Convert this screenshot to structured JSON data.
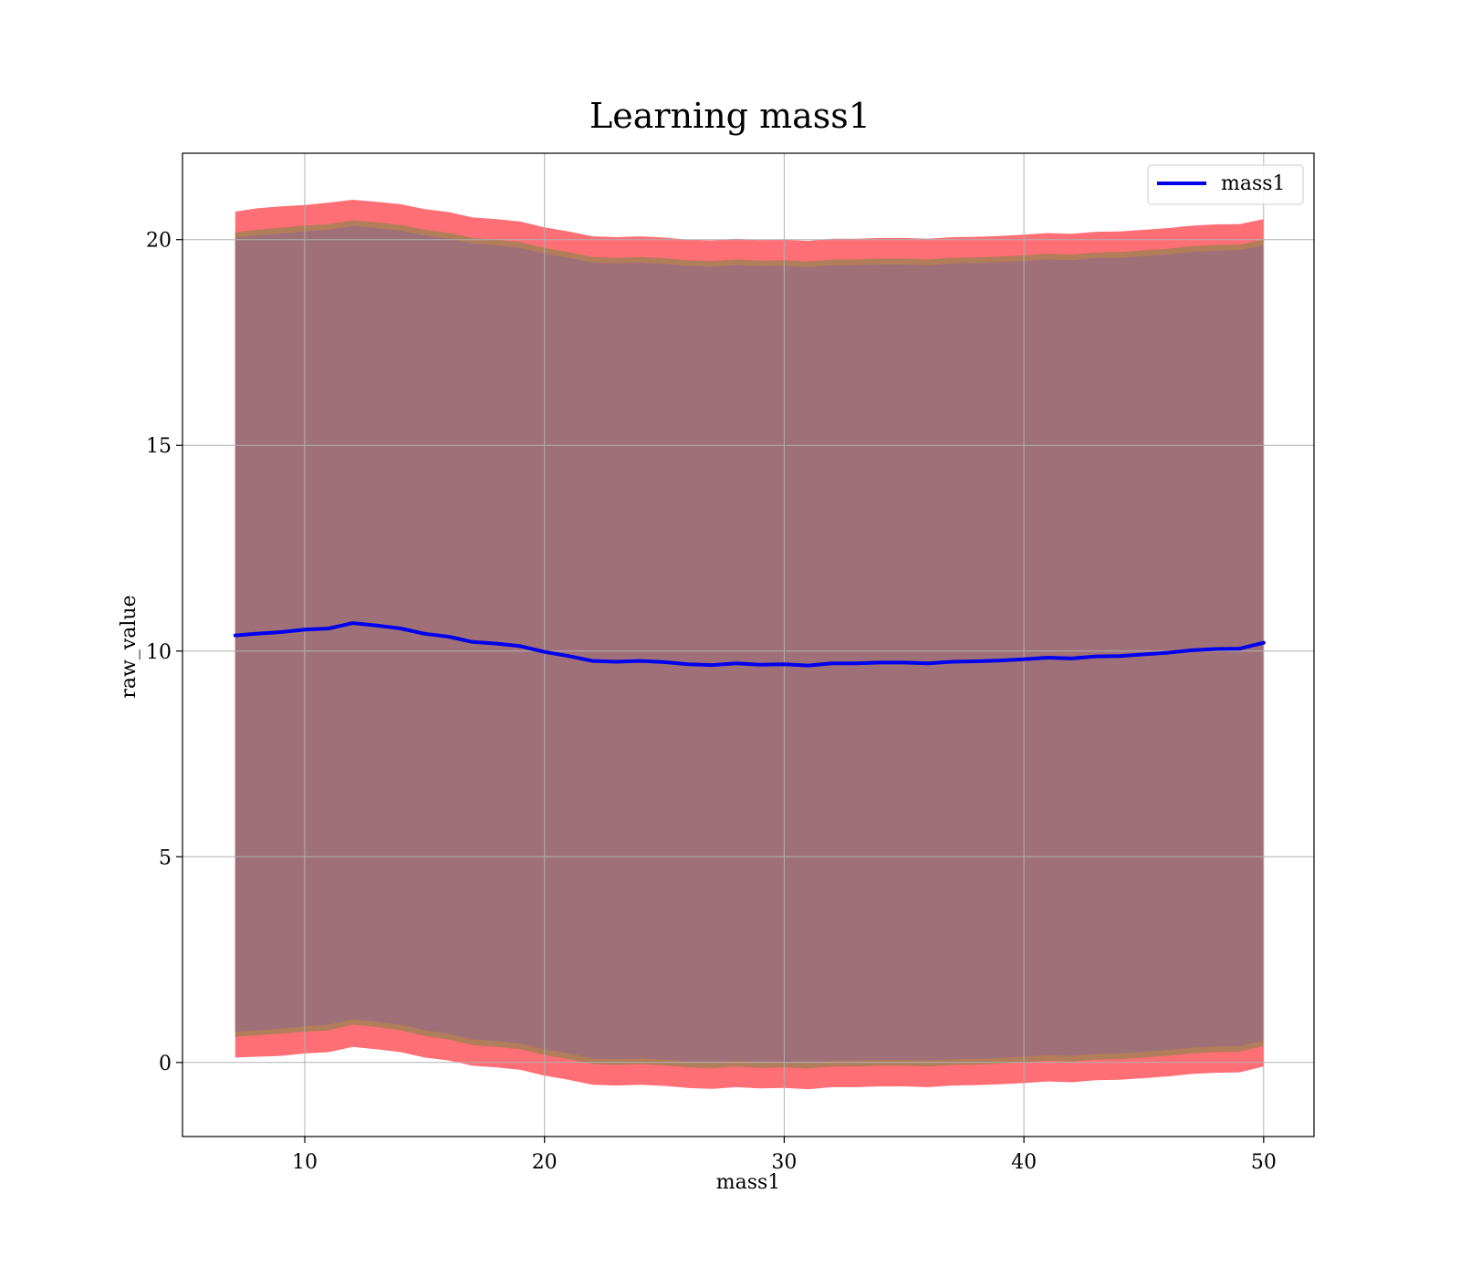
{
  "chart_data": {
    "type": "line",
    "title": "Learning mass1",
    "xlabel": "mass1",
    "ylabel": "raw_value",
    "xlim": [
      4.9,
      52.1
    ],
    "ylim": [
      -1.8,
      22.1
    ],
    "xticks": [
      10,
      20,
      30,
      40,
      50
    ],
    "xtick_labels": [
      "10",
      "20",
      "30",
      "40",
      "50"
    ],
    "yticks": [
      0,
      5,
      10,
      15,
      20
    ],
    "ytick_labels": [
      "0",
      "5",
      "10",
      "15",
      "20"
    ],
    "grid": true,
    "legend_position": "top-right",
    "x": [
      7.1,
      8,
      9,
      10,
      11,
      12,
      13,
      14,
      15,
      16,
      17,
      18,
      19,
      20,
      21,
      22,
      23,
      24,
      25,
      26,
      27,
      28,
      29,
      30,
      31,
      32,
      33,
      34,
      35,
      36,
      37,
      38,
      39,
      40,
      41,
      42,
      43,
      44,
      45,
      46,
      47,
      48,
      49,
      50
    ],
    "series": [
      {
        "name": "mass1",
        "color": "#0000ee",
        "values": [
          10.38,
          10.42,
          10.46,
          10.52,
          10.55,
          10.68,
          10.62,
          10.55,
          10.42,
          10.35,
          10.22,
          10.18,
          10.12,
          9.98,
          9.88,
          9.76,
          9.74,
          9.76,
          9.73,
          9.68,
          9.66,
          9.7,
          9.67,
          9.68,
          9.65,
          9.7,
          9.7,
          9.72,
          9.72,
          9.7,
          9.74,
          9.75,
          9.77,
          9.8,
          9.84,
          9.82,
          9.87,
          9.88,
          9.92,
          9.96,
          10.02,
          10.05,
          10.06,
          10.2
        ]
      }
    ],
    "bands": [
      {
        "role": "outer",
        "color": "#ff6f75",
        "upper": [
          20.68,
          20.76,
          20.81,
          20.84,
          20.9,
          20.97,
          20.92,
          20.86,
          20.74,
          20.67,
          20.54,
          20.5,
          20.44,
          20.3,
          20.2,
          20.08,
          20.06,
          20.08,
          20.05,
          20.0,
          19.98,
          20.02,
          19.99,
          20.0,
          19.97,
          20.02,
          20.02,
          20.04,
          20.04,
          20.02,
          20.06,
          20.07,
          20.09,
          20.12,
          20.16,
          20.14,
          20.19,
          20.2,
          20.24,
          20.28,
          20.34,
          20.37,
          20.38,
          20.5
        ],
        "lower": [
          0.12,
          0.14,
          0.16,
          0.22,
          0.25,
          0.38,
          0.32,
          0.25,
          0.12,
          0.05,
          -0.08,
          -0.12,
          -0.18,
          -0.32,
          -0.42,
          -0.54,
          -0.56,
          -0.54,
          -0.57,
          -0.62,
          -0.64,
          -0.6,
          -0.63,
          -0.62,
          -0.65,
          -0.6,
          -0.6,
          -0.58,
          -0.58,
          -0.6,
          -0.56,
          -0.55,
          -0.53,
          -0.5,
          -0.46,
          -0.48,
          -0.43,
          -0.42,
          -0.38,
          -0.34,
          -0.28,
          -0.25,
          -0.24,
          -0.1
        ]
      },
      {
        "role": "middle",
        "color": "#b27d5a",
        "upper": [
          20.18,
          20.24,
          20.29,
          20.34,
          20.38,
          20.47,
          20.42,
          20.36,
          20.24,
          20.17,
          20.04,
          20.0,
          19.94,
          19.8,
          19.7,
          19.58,
          19.56,
          19.58,
          19.55,
          19.5,
          19.48,
          19.52,
          19.49,
          19.5,
          19.47,
          19.52,
          19.52,
          19.54,
          19.54,
          19.52,
          19.56,
          19.57,
          19.59,
          19.62,
          19.66,
          19.64,
          19.69,
          19.7,
          19.74,
          19.78,
          19.84,
          19.87,
          19.88,
          20.0
        ],
        "lower": [
          0.62,
          0.66,
          0.7,
          0.75,
          0.78,
          0.92,
          0.86,
          0.78,
          0.64,
          0.56,
          0.42,
          0.38,
          0.32,
          0.18,
          0.08,
          -0.04,
          -0.06,
          -0.04,
          -0.07,
          -0.12,
          -0.14,
          -0.1,
          -0.13,
          -0.12,
          -0.15,
          -0.1,
          -0.1,
          -0.08,
          -0.08,
          -0.1,
          -0.06,
          -0.05,
          -0.03,
          0.0,
          0.04,
          0.02,
          0.07,
          0.08,
          0.12,
          0.16,
          0.22,
          0.25,
          0.26,
          0.4
        ]
      },
      {
        "role": "inner",
        "color": "#a07078",
        "upper": [
          20.05,
          20.1,
          20.15,
          20.2,
          20.24,
          20.33,
          20.28,
          20.22,
          20.1,
          20.03,
          19.9,
          19.86,
          19.8,
          19.66,
          19.56,
          19.44,
          19.42,
          19.44,
          19.41,
          19.36,
          19.34,
          19.38,
          19.35,
          19.36,
          19.33,
          19.38,
          19.38,
          19.4,
          19.4,
          19.38,
          19.42,
          19.43,
          19.45,
          19.48,
          19.52,
          19.5,
          19.55,
          19.56,
          19.6,
          19.64,
          19.7,
          19.73,
          19.74,
          19.86
        ],
        "lower": [
          0.74,
          0.78,
          0.82,
          0.88,
          0.92,
          1.05,
          0.99,
          0.92,
          0.78,
          0.7,
          0.56,
          0.52,
          0.46,
          0.32,
          0.22,
          0.1,
          0.08,
          0.1,
          0.07,
          0.02,
          0.0,
          0.04,
          0.01,
          0.02,
          -0.01,
          0.04,
          0.04,
          0.06,
          0.06,
          0.04,
          0.08,
          0.09,
          0.11,
          0.14,
          0.18,
          0.16,
          0.21,
          0.22,
          0.26,
          0.3,
          0.36,
          0.39,
          0.4,
          0.54
        ]
      }
    ]
  }
}
